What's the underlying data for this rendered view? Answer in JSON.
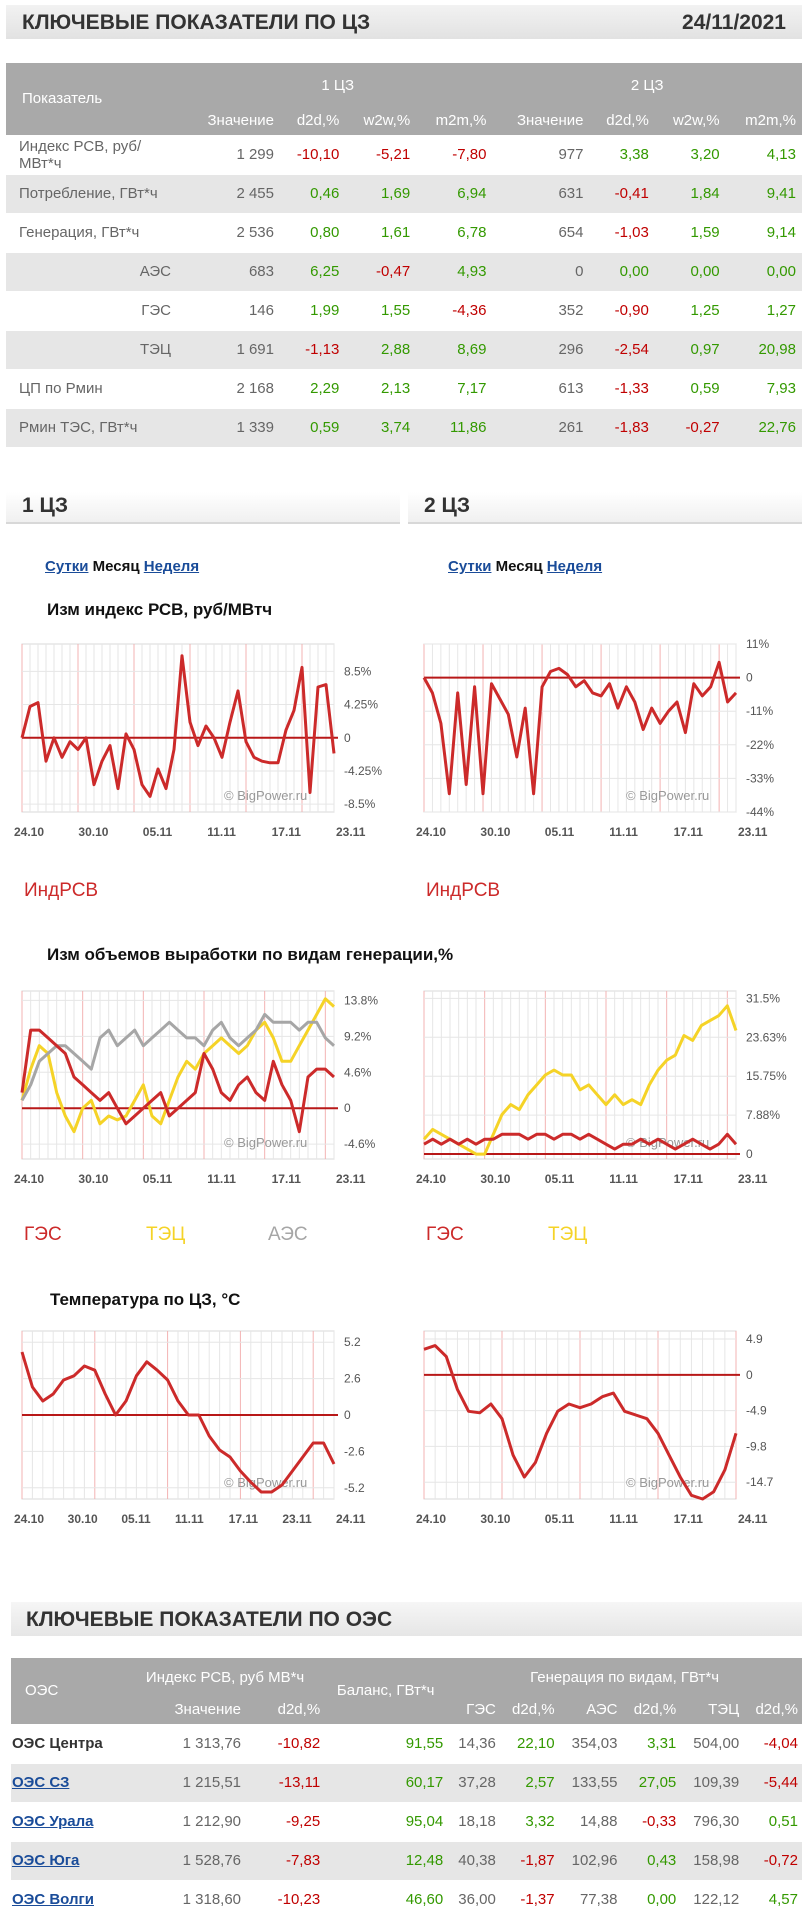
{
  "header": {
    "title": "КЛЮЧЕВЫЕ ПОКАЗАТЕЛИ ПО ЦЗ",
    "date": "24/11/2021"
  },
  "kp_table": {
    "col_indicator": "Показатель",
    "zone1": "1 ЦЗ",
    "zone2": "2 ЦЗ",
    "cols": [
      "Значение",
      "d2d,%",
      "w2w,%",
      "m2m,%",
      "Значение",
      "d2d,%",
      "w2w,%",
      "m2m,%"
    ],
    "rows": [
      {
        "name": "Индекс РСВ, руб/МВт*ч",
        "sub": false,
        "v": [
          "1 299",
          "-10,10",
          "-5,21",
          "-7,80",
          "977",
          "3,38",
          "3,20",
          "4,13"
        ]
      },
      {
        "name": "Потребление, ГВт*ч",
        "sub": false,
        "v": [
          "2 455",
          "0,46",
          "1,69",
          "6,94",
          "631",
          "-0,41",
          "1,84",
          "9,41"
        ]
      },
      {
        "name": "Генерация, ГВт*ч",
        "sub": false,
        "v": [
          "2 536",
          "0,80",
          "1,61",
          "6,78",
          "654",
          "-1,03",
          "1,59",
          "9,14"
        ]
      },
      {
        "name": "АЭС",
        "sub": true,
        "v": [
          "683",
          "6,25",
          "-0,47",
          "4,93",
          "0",
          "0,00",
          "0,00",
          "0,00"
        ]
      },
      {
        "name": "ГЭС",
        "sub": true,
        "v": [
          "146",
          "1,99",
          "1,55",
          "-4,36",
          "352",
          "-0,90",
          "1,25",
          "1,27"
        ]
      },
      {
        "name": "ТЭЦ",
        "sub": true,
        "v": [
          "1 691",
          "-1,13",
          "2,88",
          "8,69",
          "296",
          "-2,54",
          "0,97",
          "20,98"
        ]
      },
      {
        "name": "ЦП по Рмин",
        "sub": false,
        "v": [
          "2 168",
          "2,29",
          "2,13",
          "7,17",
          "613",
          "-1,33",
          "0,59",
          "7,93"
        ]
      },
      {
        "name": "Рмин ТЭС, ГВт*ч",
        "sub": false,
        "v": [
          "1 339",
          "0,59",
          "3,74",
          "11,86",
          "261",
          "-1,83",
          "-0,27",
          "22,76"
        ]
      }
    ]
  },
  "section1": "1 ЦЗ",
  "section2": "2 ЦЗ",
  "tabs": {
    "day": "Сутки",
    "month": "Месяц",
    "week": "Неделя"
  },
  "titles": {
    "price": "Изм индекс РСВ, руб/МВтч",
    "gen": "Изм объемов выработки по видам генерации,%",
    "temp": "Температура по ЦЗ, °C"
  },
  "watermark": "© BigPower.ru",
  "legend": {
    "price": "ИндРСВ",
    "hydro": "ГЭС",
    "chp": "ТЭЦ",
    "nuclear": "АЭС"
  },
  "colors": {
    "red": "#cc2a2a",
    "yellow": "#f5d327",
    "gray": "#a6a6a6",
    "zero": "#b81818",
    "grid": "#e6e6e6",
    "vline": "#f3b3b3"
  },
  "chart_data": [
    {
      "id": "price1",
      "type": "line",
      "x_ticks": [
        "24.10",
        "30.10",
        "05.11",
        "11.11",
        "17.11",
        "23.11"
      ],
      "y_ticks": [
        "8.5%",
        "4.25%",
        "0",
        "-4.25%",
        "-8.5%"
      ],
      "ylim": [
        -9.5,
        12
      ],
      "legend": "ИндРСВ",
      "series": [
        {
          "color": "red",
          "values": [
            0,
            4,
            4.5,
            -3,
            0,
            -2.5,
            -0.5,
            -1.5,
            0,
            -6,
            -3,
            -1,
            -6.5,
            0.5,
            -1.5,
            -6,
            -7.5,
            -4,
            -6.5,
            -1.5,
            10.5,
            2,
            -1,
            1.5,
            0,
            -2.5,
            2,
            6,
            -0.5,
            -2.5,
            -3,
            -3.2,
            -3.2,
            1,
            3.5,
            9,
            -7,
            6.5,
            6.8,
            -2
          ]
        }
      ]
    },
    {
      "id": "price2",
      "type": "line",
      "x_ticks": [
        "24.10",
        "30.10",
        "05.11",
        "11.11",
        "17.11",
        "23.11"
      ],
      "y_ticks": [
        "11%",
        "0",
        "-11%",
        "-22%",
        "-33%",
        "-44%"
      ],
      "ylim": [
        -44,
        11
      ],
      "series": [
        {
          "color": "red",
          "values": [
            0,
            -5,
            -15,
            -38,
            -5,
            -35,
            -3,
            -38,
            -2,
            -7,
            -12,
            -26,
            -10,
            -38,
            -3,
            2,
            3,
            1,
            -3,
            -1,
            -5,
            -6,
            -2,
            -10,
            -3,
            -8,
            -17,
            -10,
            -15,
            -11,
            -8,
            -18,
            -2,
            -6,
            -3,
            5,
            -8,
            -5
          ]
        }
      ]
    },
    {
      "id": "gen1",
      "type": "line",
      "x_ticks": [
        "24.10",
        "30.10",
        "05.11",
        "11.11",
        "17.11",
        "23.11"
      ],
      "y_ticks": [
        "13.8%",
        "9.2%",
        "4.6%",
        "0",
        "-4.6%"
      ],
      "ylim": [
        -6.5,
        15
      ],
      "legend": [
        "ГЭС",
        "ТЭЦ",
        "АЭС"
      ],
      "series": [
        {
          "name": "ТЭЦ",
          "color": "yellow",
          "values": [
            1,
            5,
            8,
            7,
            2,
            -1,
            -3,
            0,
            1,
            -2,
            -1,
            -1.5,
            -1,
            1,
            3,
            -1,
            -2,
            1,
            4,
            6,
            5,
            7,
            8,
            9,
            8,
            7,
            8,
            10,
            11,
            9,
            6,
            6,
            8,
            10,
            12,
            14,
            13
          ]
        },
        {
          "name": "АЭС",
          "color": "gray",
          "values": [
            1,
            3,
            6,
            7,
            8,
            8,
            7,
            6,
            5,
            9,
            10,
            8,
            9,
            10,
            8,
            9,
            10,
            11,
            10,
            9,
            9,
            8,
            10,
            11,
            9,
            8,
            9,
            10,
            12,
            11,
            11,
            11,
            10,
            11,
            11,
            9,
            8
          ]
        },
        {
          "name": "ГЭС",
          "color": "red",
          "values": [
            2,
            10,
            10,
            9,
            8,
            7,
            4,
            3,
            2,
            1,
            2,
            0,
            -2,
            -1,
            0,
            1,
            2,
            -1,
            0,
            1,
            2,
            7,
            5,
            2,
            1,
            3,
            4,
            2,
            1,
            6,
            3,
            1,
            -3,
            4,
            5,
            5,
            4
          ]
        }
      ]
    },
    {
      "id": "gen2",
      "type": "line",
      "x_ticks": [
        "24.10",
        "30.10",
        "05.11",
        "11.11",
        "17.11",
        "23.11"
      ],
      "y_ticks": [
        "31.5%",
        "23.63%",
        "15.75%",
        "7.88%",
        "0"
      ],
      "ylim": [
        -1,
        33
      ],
      "legend": [
        "ГЭС",
        "ТЭЦ"
      ],
      "series": [
        {
          "name": "ТЭЦ",
          "color": "yellow",
          "values": [
            3,
            5,
            4,
            3,
            2,
            1,
            0,
            0,
            4,
            8,
            10,
            9,
            12,
            14,
            16,
            17,
            16,
            16,
            13,
            14,
            12,
            10,
            12,
            10,
            11,
            10,
            14,
            17,
            19,
            20,
            24,
            23,
            26,
            27,
            28,
            30,
            25
          ]
        },
        {
          "name": "ГЭС",
          "color": "red",
          "values": [
            2,
            3,
            2,
            3,
            2,
            3,
            2,
            3,
            3,
            4,
            4,
            4,
            3,
            4,
            4,
            3,
            4,
            4,
            3,
            4,
            3,
            2,
            1,
            2,
            2,
            3,
            2,
            3,
            2,
            1,
            2,
            3,
            2,
            1,
            2,
            4,
            2
          ]
        }
      ]
    },
    {
      "id": "temp1",
      "type": "line",
      "x_ticks": [
        "24.10",
        "30.10",
        "05.11",
        "11.11",
        "17.11",
        "23.11",
        "24.11"
      ],
      "y_ticks": [
        "5.2",
        "2.6",
        "0",
        "-2.6",
        "-5.2"
      ],
      "ylim": [
        -6,
        6
      ],
      "series": [
        {
          "color": "red",
          "values": [
            4.5,
            2,
            1,
            1.5,
            2.5,
            2.8,
            3.5,
            3.2,
            1.5,
            0,
            1,
            2.8,
            3.8,
            3.2,
            2.5,
            1,
            0,
            0,
            -1.5,
            -2.5,
            -3,
            -4,
            -4.8,
            -5.5,
            -5.5,
            -5,
            -4,
            -3,
            -2,
            -2,
            -3.5
          ]
        }
      ]
    },
    {
      "id": "temp2",
      "type": "line",
      "x_ticks": [
        "24.10",
        "30.10",
        "05.11",
        "11.11",
        "17.11",
        "24.11"
      ],
      "y_ticks": [
        "4.9",
        "0",
        "-4.9",
        "-9.8",
        "-14.7"
      ],
      "ylim": [
        -17,
        6
      ],
      "series": [
        {
          "color": "red",
          "values": [
            3.5,
            4,
            2.5,
            -2,
            -5,
            -5.2,
            -4,
            -6,
            -11,
            -14,
            -12,
            -8,
            -5,
            -4,
            -4.5,
            -4,
            -3,
            -2.5,
            -5,
            -5.5,
            -6,
            -8,
            -11,
            -14,
            -16.5,
            -17,
            -16,
            -13,
            -8
          ]
        }
      ]
    }
  ],
  "oes": {
    "title": "КЛЮЧЕВЫЕ ПОКАЗАТЕЛИ ПО ОЭС",
    "col_oes": "ОЭС",
    "col_index": "Индекс РСВ, руб МВ*ч",
    "col_balance": "Баланс, ГВт*ч",
    "col_gen": "Генерация по видам, ГВт*ч",
    "sub": [
      "Значение",
      "d2d,%",
      "ГЭС",
      "d2d,%",
      "АЭС",
      "d2d,%",
      "ТЭЦ",
      "d2d,%"
    ],
    "rows": [
      {
        "name": "ОЭС Центра",
        "link": false,
        "v": [
          "1 313,76",
          "-10,82",
          "91,55",
          "14,36",
          "22,10",
          "354,03",
          "3,31",
          "504,00",
          "-4,04"
        ]
      },
      {
        "name": "ОЭС СЗ",
        "link": true,
        "v": [
          "1 215,51",
          "-13,11",
          "60,17",
          "37,28",
          "2,57",
          "133,55",
          "27,05",
          "109,39",
          "-5,44"
        ]
      },
      {
        "name": "ОЭС Урала",
        "link": true,
        "v": [
          "1 212,90",
          "-9,25",
          "95,04",
          "18,18",
          "3,32",
          "14,88",
          "-0,33",
          "796,30",
          "0,51"
        ]
      },
      {
        "name": "ОЭС Юга",
        "link": true,
        "v": [
          "1 528,76",
          "-7,83",
          "12,48",
          "40,38",
          "-1,87",
          "102,96",
          "0,43",
          "158,98",
          "-0,72"
        ]
      },
      {
        "name": "ОЭС Волги",
        "link": true,
        "v": [
          "1 318,60",
          "-10,23",
          "46,60",
          "36,00",
          "-1,37",
          "77,38",
          "0,00",
          "122,12",
          "4,57"
        ]
      }
    ]
  }
}
